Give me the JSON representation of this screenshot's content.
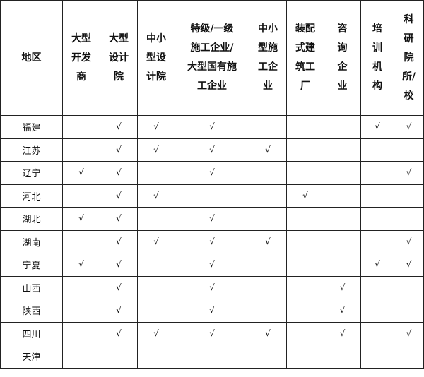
{
  "table": {
    "headers": [
      "地区",
      "大型\n开发\n商",
      "大型\n设计\n院",
      "中小\n型设\n计院",
      "特级/一级\n施工企业/\n大型国有施\n工企业",
      "中小\n型施\n工企\n业",
      "装配\n式建\n筑工\n厂",
      "咨\n询\n企\n业",
      "培\n训\n机\n构",
      "科\n研\n院\n所/\n校"
    ],
    "check_symbol": "√",
    "rows": [
      {
        "region": "福建",
        "cells": [
          "",
          "√",
          "√",
          "√",
          "",
          "",
          "",
          "√",
          "√"
        ]
      },
      {
        "region": "江苏",
        "cells": [
          "",
          "√",
          "√",
          "√",
          "√",
          "",
          "",
          "",
          ""
        ]
      },
      {
        "region": "辽宁",
        "cells": [
          "√",
          "√",
          "",
          "√",
          "",
          "",
          "",
          "",
          "√"
        ]
      },
      {
        "region": "河北",
        "cells": [
          "",
          "√",
          "√",
          "",
          "",
          "√",
          "",
          "",
          ""
        ]
      },
      {
        "region": "湖北",
        "cells": [
          "√",
          "√",
          "",
          "√",
          "",
          "",
          "",
          "",
          ""
        ]
      },
      {
        "region": "湖南",
        "cells": [
          "",
          "√",
          "√",
          "√",
          "√",
          "",
          "",
          "",
          "√"
        ]
      },
      {
        "region": "宁夏",
        "cells": [
          "√",
          "√",
          "",
          "√",
          "",
          "",
          "",
          "√",
          "√"
        ]
      },
      {
        "region": "山西",
        "cells": [
          "",
          "√",
          "",
          "√",
          "",
          "",
          "√",
          "",
          ""
        ]
      },
      {
        "region": "陕西",
        "cells": [
          "",
          "√",
          "",
          "√",
          "",
          "",
          "√",
          "",
          ""
        ]
      },
      {
        "region": "四川",
        "cells": [
          "",
          "√",
          "√",
          "√",
          "√",
          "",
          "√",
          "",
          "√"
        ]
      },
      {
        "region": "天津",
        "cells": [
          "",
          "",
          "",
          "",
          "",
          "",
          "",
          "",
          ""
        ]
      }
    ]
  }
}
